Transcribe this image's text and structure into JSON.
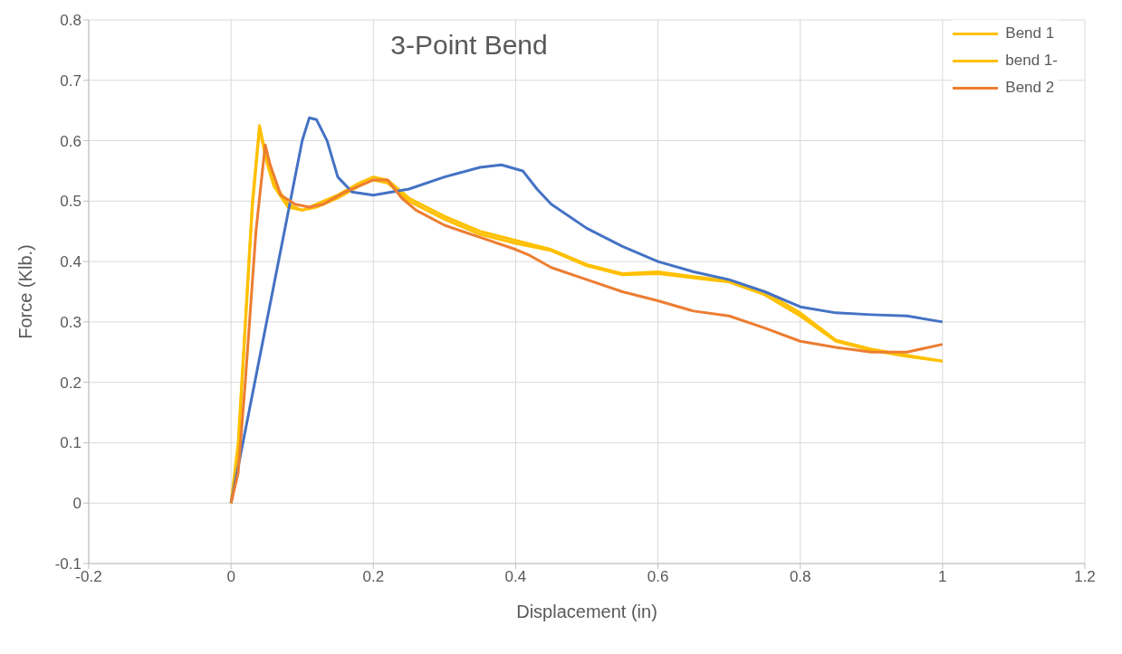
{
  "chart_data": {
    "type": "line",
    "title": "3-Point Bend",
    "xlabel": "Displacement (in)",
    "ylabel": "Force (Klb.)",
    "xlim": [
      -0.2,
      1.2
    ],
    "xticks": [
      -0.2,
      0,
      0.2,
      0.4,
      0.6,
      0.8,
      1,
      1.2
    ],
    "ylim": [
      -0.1,
      0.8
    ],
    "yticks": [
      -0.1,
      0,
      0.1,
      0.2,
      0.3,
      0.4,
      0.5,
      0.6,
      0.7,
      0.8
    ],
    "grid": true,
    "legend": "top right",
    "marker": "none",
    "line_style": "solid",
    "series": [
      {
        "name": "Bend 1",
        "color": "#ffc000",
        "x": [
          0,
          0.01,
          0.02,
          0.03,
          0.04,
          0.05,
          0.06,
          0.08,
          0.1,
          0.12,
          0.15,
          0.18,
          0.2,
          0.22,
          0.25,
          0.3,
          0.35,
          0.4,
          0.45,
          0.5,
          0.55,
          0.6,
          0.65,
          0.7,
          0.75,
          0.8,
          0.85,
          0.9,
          0.95,
          1.0
        ],
        "values": [
          0,
          0.1,
          0.3,
          0.5,
          0.625,
          0.57,
          0.53,
          0.495,
          0.485,
          0.495,
          0.51,
          0.53,
          0.54,
          0.535,
          0.505,
          0.475,
          0.45,
          0.435,
          0.42,
          0.395,
          0.38,
          0.383,
          0.375,
          0.368,
          0.35,
          0.315,
          0.27,
          0.255,
          0.245,
          0.235
        ]
      },
      {
        "name": "bend 1-",
        "color": "#ffc000",
        "x": [
          0,
          0.01,
          0.02,
          0.03,
          0.04,
          0.05,
          0.06,
          0.08,
          0.1,
          0.12,
          0.15,
          0.18,
          0.2,
          0.22,
          0.25,
          0.3,
          0.35,
          0.4,
          0.45,
          0.5,
          0.55,
          0.6,
          0.65,
          0.7,
          0.75,
          0.8,
          0.85,
          0.9,
          0.95,
          1.0
        ],
        "values": [
          0,
          0.09,
          0.29,
          0.49,
          0.62,
          0.565,
          0.525,
          0.49,
          0.485,
          0.49,
          0.505,
          0.525,
          0.535,
          0.53,
          0.5,
          0.47,
          0.445,
          0.43,
          0.418,
          0.393,
          0.378,
          0.38,
          0.373,
          0.366,
          0.345,
          0.31,
          0.268,
          0.253,
          0.243,
          0.235
        ]
      },
      {
        "color": "#4472c4",
        "x": [
          0,
          0.05,
          0.1,
          0.11,
          0.12,
          0.135,
          0.15,
          0.17,
          0.2,
          0.25,
          0.3,
          0.35,
          0.38,
          0.41,
          0.43,
          0.45,
          0.5,
          0.55,
          0.6,
          0.65,
          0.7,
          0.75,
          0.8,
          0.85,
          0.9,
          0.95,
          1.0
        ],
        "values": [
          0,
          0.3,
          0.6,
          0.638,
          0.635,
          0.6,
          0.54,
          0.515,
          0.51,
          0.52,
          0.54,
          0.556,
          0.56,
          0.55,
          0.52,
          0.495,
          0.455,
          0.425,
          0.4,
          0.383,
          0.37,
          0.35,
          0.325,
          0.315,
          0.312,
          0.31,
          0.3
        ]
      },
      {
        "name": "Bend 2",
        "color": "#ed7d31",
        "x": [
          0,
          0.01,
          0.02,
          0.035,
          0.048,
          0.055,
          0.07,
          0.09,
          0.11,
          0.13,
          0.16,
          0.2,
          0.22,
          0.24,
          0.26,
          0.3,
          0.35,
          0.4,
          0.42,
          0.45,
          0.5,
          0.55,
          0.6,
          0.65,
          0.7,
          0.75,
          0.8,
          0.85,
          0.9,
          0.95,
          1.0
        ],
        "values": [
          0,
          0.05,
          0.2,
          0.45,
          0.593,
          0.56,
          0.51,
          0.495,
          0.49,
          0.495,
          0.515,
          0.535,
          0.535,
          0.505,
          0.485,
          0.46,
          0.44,
          0.42,
          0.41,
          0.39,
          0.37,
          0.35,
          0.335,
          0.318,
          0.31,
          0.29,
          0.268,
          0.258,
          0.25,
          0.25,
          0.263
        ]
      }
    ]
  }
}
